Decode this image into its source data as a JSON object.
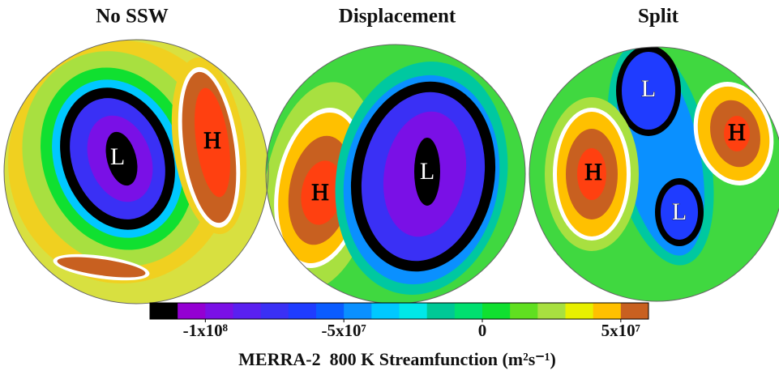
{
  "panels": [
    {
      "title": "No SSW",
      "labels": [
        "L",
        "H"
      ]
    },
    {
      "title": "Displacement",
      "labels": [
        "H",
        "L"
      ]
    },
    {
      "title": "Split",
      "labels": [
        "L",
        "H",
        "H",
        "L"
      ]
    }
  ],
  "colorbar": {
    "label": "MERRA-2  800 K Streamfunction (m²s⁻¹)",
    "lim": [
      -120000000,
      60000000
    ],
    "ticks": [
      {
        "value": -100000000,
        "label": "-1x10⁸"
      },
      {
        "value": -50000000,
        "label": "-5x10⁷"
      },
      0,
      {
        "value": 50000000,
        "label": "5x10⁷"
      }
    ],
    "colors": [
      "#000000",
      "#9400d3",
      "#7a10e6",
      "#5a20f0",
      "#3a30f5",
      "#1f3cff",
      "#0a5cff",
      "#0a90ff",
      "#00c8ff",
      "#00e8e8",
      "#00c896",
      "#00e070",
      "#10e030",
      "#60e020",
      "#a8e040",
      "#e8f000",
      "#ffc000",
      "#c86020"
    ]
  }
}
